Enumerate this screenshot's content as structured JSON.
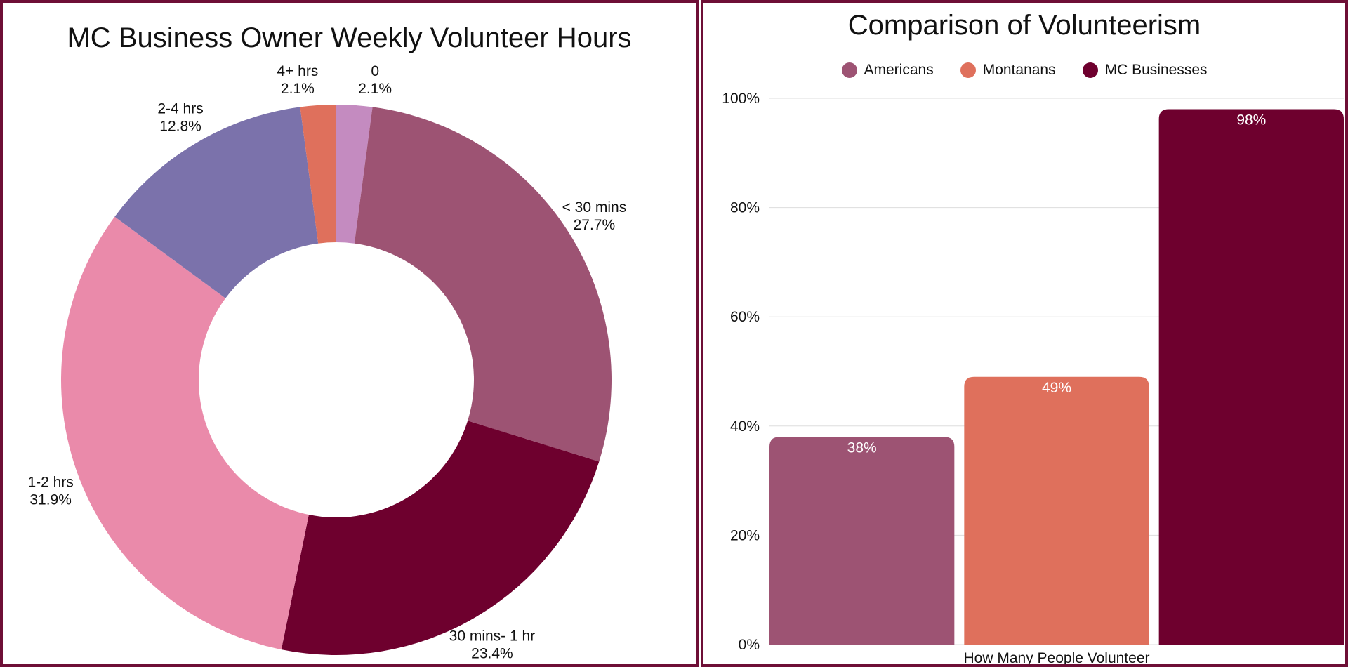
{
  "chart_data": [
    {
      "type": "pie",
      "title": "MC Business Owner Weekly Volunteer Hours",
      "donut": true,
      "slices": [
        {
          "label": "0",
          "value": 2.1,
          "percent_label": "2.1%",
          "color": "#c48bc0"
        },
        {
          "label": "< 30 mins",
          "value": 27.7,
          "percent_label": "27.7%",
          "color": "#9d5373"
        },
        {
          "label": "30 mins- 1 hr",
          "value": 23.4,
          "percent_label": "23.4%",
          "color": "#6e002e"
        },
        {
          "label": "1-2 hrs",
          "value": 31.9,
          "percent_label": "31.9%",
          "color": "#ea8aaa"
        },
        {
          "label": "2-4 hrs",
          "value": 12.8,
          "percent_label": "12.8%",
          "color": "#7b72ab"
        },
        {
          "label": "4+ hrs",
          "value": 2.1,
          "percent_label": "2.1%",
          "color": "#df705c"
        }
      ]
    },
    {
      "type": "bar",
      "title": "Comparison of Volunteerism",
      "xlabel": "How Many People Volunteer",
      "ylabel": "",
      "ylim": [
        0,
        100
      ],
      "yticks": [
        "0%",
        "20%",
        "40%",
        "60%",
        "80%",
        "100%"
      ],
      "grid": true,
      "legend_position": "top",
      "series": [
        {
          "name": "Americans",
          "value": 38,
          "label": "38%",
          "color": "#9d5373"
        },
        {
          "name": "Montanans",
          "value": 49,
          "label": "49%",
          "color": "#df705c"
        },
        {
          "name": "MC Businesses",
          "value": 98,
          "label": "98%",
          "color": "#6e002e"
        }
      ]
    }
  ]
}
